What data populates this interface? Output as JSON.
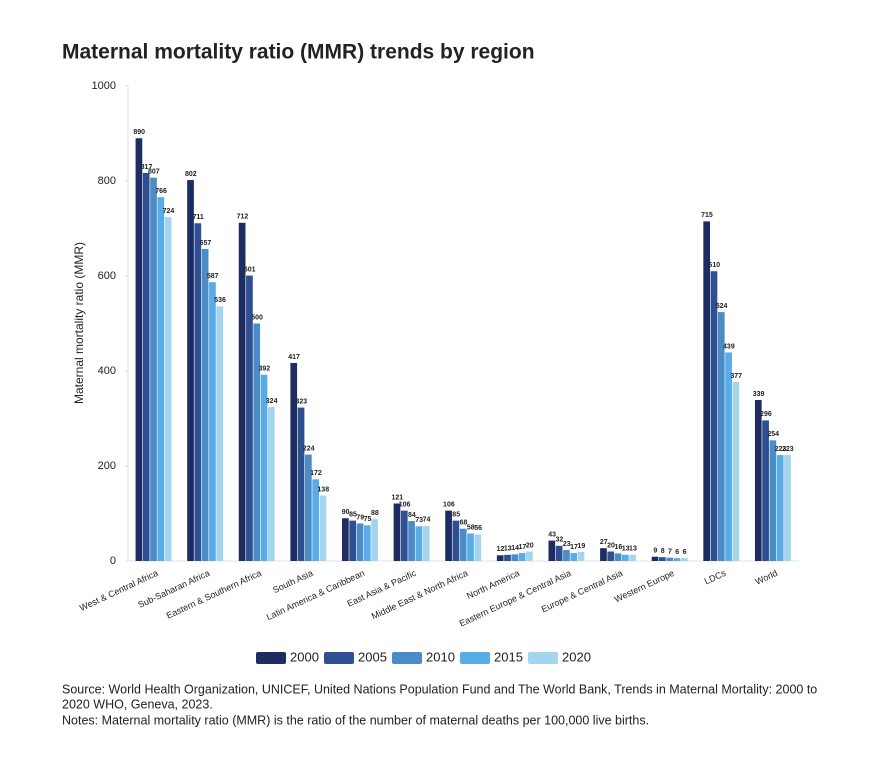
{
  "chart_data": {
    "type": "bar",
    "title": "Maternal mortality ratio (MMR) trends by region",
    "y_label": "Maternal mortality ratio (MMR)",
    "categories": [
      "West & Central Africa",
      "Sub-Saharan Africa",
      "Eastern & Southern Africa",
      "South Asia",
      "Latin America & Caribbean",
      "East Asia & Pacific",
      "Middle East & North Africa",
      "North America",
      "Eastern Europe & Central Asia",
      "Europe & Central Asia",
      "Western Europe",
      "LDCs",
      "World"
    ],
    "series": [
      {
        "name": "2000",
        "color": "#1e2d61",
        "values": [
          890,
          802,
          712,
          417,
          90,
          121,
          106,
          12,
          43,
          27,
          9,
          715,
          339
        ]
      },
      {
        "name": "2005",
        "color": "#2f4f92",
        "values": [
          817,
          711,
          601,
          323,
          85,
          106,
          85,
          13,
          32,
          20,
          8,
          610,
          296
        ]
      },
      {
        "name": "2010",
        "color": "#4b8cc6",
        "values": [
          807,
          657,
          500,
          224,
          79,
          84,
          68,
          14,
          23,
          16,
          7,
          524,
          254
        ]
      },
      {
        "name": "2015",
        "color": "#59ace6",
        "values": [
          766,
          587,
          392,
          172,
          75,
          73,
          58,
          17,
          17,
          13,
          6,
          439,
          223
        ]
      },
      {
        "name": "2020",
        "color": "#a4d5ef",
        "values": [
          724,
          536,
          324,
          138,
          88,
          74,
          56,
          20,
          19,
          13,
          6,
          377,
          223
        ]
      }
    ],
    "ylim": [
      0,
      1000
    ],
    "yticks": [
      0,
      200,
      400,
      600,
      800,
      1000
    ],
    "source": "Source: World Health Organization, UNICEF, United Nations Population Fund and The World Bank, Trends in Maternal Mortality: 2000 to",
    "source_cont": "2020 WHO, Geneva, 2023.",
    "notes": "Notes: Maternal mortality ratio (MMR) is the ratio of the number of maternal deaths per 100,000 live births."
  }
}
